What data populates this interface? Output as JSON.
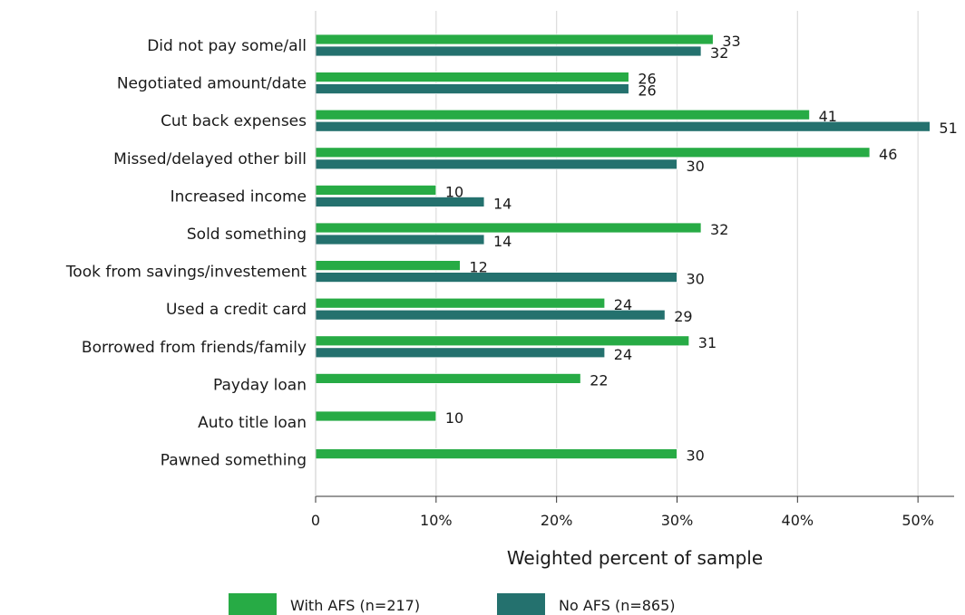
{
  "chart_data": {
    "type": "bar",
    "orientation": "horizontal",
    "categories": [
      "Did not pay some/all",
      "Negotiated amount/date",
      "Cut back expenses",
      "Missed/delayed other bill",
      "Increased income",
      "Sold something",
      "Took from savings/investement",
      "Used a credit card",
      "Borrowed from friends/family",
      "Payday loan",
      "Auto title loan",
      "Pawned something"
    ],
    "series": [
      {
        "name": "With AFS (n=217)",
        "color": "#27ab45",
        "values": [
          33,
          26,
          41,
          46,
          10,
          32,
          12,
          24,
          31,
          22,
          10,
          30
        ]
      },
      {
        "name": "No AFS (n=865)",
        "color": "#24716e",
        "values": [
          32,
          26,
          51,
          30,
          14,
          14,
          30,
          29,
          24,
          null,
          null,
          null
        ]
      }
    ],
    "xlabel": "Weighted percent of sample",
    "xlim": [
      0,
      53
    ],
    "xticks": [
      0,
      10,
      20,
      30,
      40,
      50
    ],
    "xtick_labels": [
      "0",
      "10%",
      "20%",
      "30%",
      "40%",
      "50%"
    ],
    "grid": true,
    "legend_position": "bottom"
  }
}
